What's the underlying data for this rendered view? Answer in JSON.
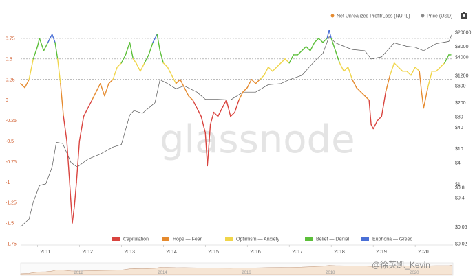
{
  "chart_data": {
    "type": "line",
    "title": "",
    "legend_top": [
      {
        "label": "Net Unrealized Profit/Loss (NUPL)",
        "color": "#e58a2e"
      },
      {
        "label": "Price (USD)",
        "color": "#888888"
      }
    ],
    "left_axis_ticks": [
      "0.75",
      "0.5",
      "0.25",
      "0",
      "-0.25",
      "-0.5",
      "-0.75",
      "-1",
      "-1.25",
      "-1.5",
      "-1.75"
    ],
    "left_axis_values": [
      0.75,
      0.5,
      0.25,
      0,
      -0.25,
      -0.5,
      -0.75,
      -1,
      -1.25,
      -1.5,
      -1.75
    ],
    "right_axis_ticks": [
      "$20000",
      "$8000",
      "$4000",
      "$1200",
      "$600",
      "$200",
      "$80",
      "$40",
      "$10",
      "$4",
      "$1",
      "$0.8",
      "$0.4",
      "$0.06",
      "$0.02"
    ],
    "x_ticks": [
      "2011",
      "2012",
      "2013",
      "2014",
      "2015",
      "2016",
      "2017",
      "2018",
      "2019",
      "2020"
    ],
    "ylim": [
      -1.75,
      0.9
    ],
    "zones": [
      {
        "label": "Capitulation",
        "color": "#d9443f",
        "min": -2,
        "max": 0
      },
      {
        "label": "Hope — Fear",
        "color": "#e58a2e",
        "min": 0,
        "max": 0.25
      },
      {
        "label": "Optimism — Anxiety",
        "color": "#f0d54a",
        "min": 0.25,
        "max": 0.5
      },
      {
        "label": "Belief — Denial",
        "color": "#5cbf3a",
        "min": 0.5,
        "max": 0.75
      },
      {
        "label": "Euphoria — Greed",
        "color": "#4a6fd6",
        "min": 0.75,
        "max": 1
      }
    ],
    "nupl_series": {
      "name": "Net Unrealized Profit/Loss (NUPL)",
      "x": [
        2010.6,
        2010.7,
        2010.8,
        2010.9,
        2011.0,
        2011.05,
        2011.15,
        2011.25,
        2011.35,
        2011.42,
        2011.48,
        2011.55,
        2011.62,
        2011.7,
        2011.78,
        2011.83,
        2011.88,
        2011.93,
        2012.0,
        2012.1,
        2012.2,
        2012.3,
        2012.4,
        2012.5,
        2012.6,
        2012.7,
        2012.8,
        2012.9,
        2013.0,
        2013.1,
        2013.2,
        2013.28,
        2013.35,
        2013.45,
        2013.55,
        2013.65,
        2013.75,
        2013.85,
        2013.92,
        2014.0,
        2014.1,
        2014.2,
        2014.3,
        2014.4,
        2014.5,
        2014.6,
        2014.7,
        2014.8,
        2014.9,
        2015.0,
        2015.05,
        2015.12,
        2015.2,
        2015.3,
        2015.4,
        2015.5,
        2015.6,
        2015.7,
        2015.8,
        2015.9,
        2016.0,
        2016.1,
        2016.2,
        2016.3,
        2016.4,
        2016.5,
        2016.6,
        2016.7,
        2016.8,
        2016.9,
        2017.0,
        2017.1,
        2017.2,
        2017.3,
        2017.4,
        2017.5,
        2017.6,
        2017.7,
        2017.8,
        2017.9,
        2017.95,
        2018.0,
        2018.1,
        2018.2,
        2018.3,
        2018.4,
        2018.5,
        2018.6,
        2018.7,
        2018.8,
        2018.9,
        2018.95,
        2019.0,
        2019.1,
        2019.2,
        2019.3,
        2019.4,
        2019.5,
        2019.6,
        2019.7,
        2019.8,
        2019.9,
        2020.0,
        2020.1,
        2020.15,
        2020.2,
        2020.3,
        2020.4,
        2020.5,
        2020.6,
        2020.7,
        2020.8,
        2020.85
      ],
      "values": [
        0.2,
        0.15,
        0.25,
        0.5,
        0.65,
        0.75,
        0.6,
        0.7,
        0.8,
        0.7,
        0.5,
        0.2,
        -0.2,
        -0.5,
        -1.1,
        -1.5,
        -1.3,
        -1.0,
        -0.5,
        -0.2,
        -0.1,
        0.0,
        0.1,
        0.2,
        0.05,
        0.2,
        0.25,
        0.4,
        0.45,
        0.55,
        0.7,
        0.5,
        0.45,
        0.35,
        0.45,
        0.55,
        0.7,
        0.8,
        0.6,
        0.45,
        0.4,
        0.3,
        0.2,
        0.25,
        0.15,
        0.05,
        0.0,
        -0.1,
        -0.2,
        -0.4,
        -0.8,
        -0.3,
        -0.15,
        -0.2,
        -0.1,
        0.0,
        -0.2,
        -0.15,
        0.0,
        0.1,
        0.15,
        0.25,
        0.2,
        0.25,
        0.3,
        0.4,
        0.35,
        0.4,
        0.45,
        0.5,
        0.45,
        0.55,
        0.55,
        0.6,
        0.65,
        0.6,
        0.7,
        0.75,
        0.7,
        0.75,
        0.85,
        0.75,
        0.6,
        0.45,
        0.35,
        0.4,
        0.25,
        0.15,
        0.1,
        0.05,
        0.0,
        -0.3,
        -0.35,
        -0.25,
        -0.2,
        0.1,
        0.3,
        0.45,
        0.4,
        0.35,
        0.35,
        0.3,
        0.4,
        0.35,
        0.1,
        -0.1,
        0.15,
        0.35,
        0.35,
        0.4,
        0.45,
        0.55,
        0.55
      ]
    },
    "price_series": {
      "name": "Price (USD)",
      "x": [
        2010.6,
        2010.8,
        2010.9,
        2011.05,
        2011.2,
        2011.35,
        2011.45,
        2011.6,
        2011.8,
        2011.95,
        2012.2,
        2012.5,
        2012.8,
        2013.0,
        2013.2,
        2013.3,
        2013.5,
        2013.8,
        2013.92,
        2014.1,
        2014.3,
        2014.5,
        2014.8,
        2015.0,
        2015.3,
        2015.6,
        2015.9,
        2016.2,
        2016.5,
        2016.8,
        2017.0,
        2017.3,
        2017.6,
        2017.8,
        2017.95,
        2018.1,
        2018.3,
        2018.5,
        2018.8,
        2018.95,
        2019.2,
        2019.5,
        2019.8,
        2020.0,
        2020.2,
        2020.5,
        2020.8,
        2020.88
      ],
      "values": [
        0.06,
        0.1,
        0.3,
        0.9,
        1.0,
        3.0,
        15,
        14,
        4,
        3,
        5,
        7,
        11,
        13,
        90,
        120,
        100,
        200,
        900,
        700,
        500,
        600,
        400,
        250,
        250,
        240,
        400,
        400,
        650,
        700,
        900,
        1200,
        3000,
        5000,
        15000,
        10000,
        8000,
        6500,
        6000,
        3500,
        4000,
        10000,
        8000,
        7500,
        6000,
        9500,
        11000,
        18000
      ]
    }
  },
  "watermark": "glassnode",
  "credit": "@徐英凯_Kevin",
  "navigator_ticks": [
    "2012",
    "2014",
    "2016",
    "2018",
    "2020"
  ],
  "camera_icon": "camera-icon"
}
